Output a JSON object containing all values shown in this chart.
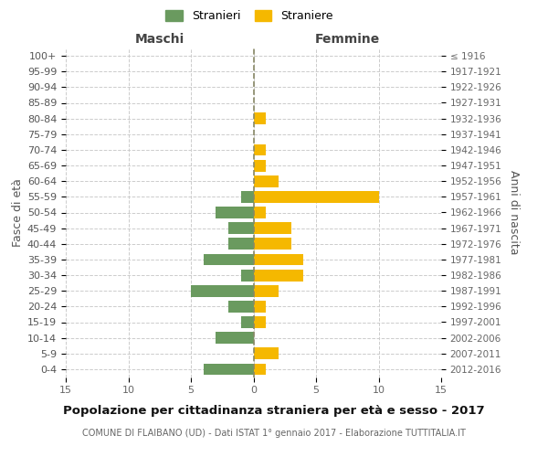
{
  "age_groups": [
    "0-4",
    "5-9",
    "10-14",
    "15-19",
    "20-24",
    "25-29",
    "30-34",
    "35-39",
    "40-44",
    "45-49",
    "50-54",
    "55-59",
    "60-64",
    "65-69",
    "70-74",
    "75-79",
    "80-84",
    "85-89",
    "90-94",
    "95-99",
    "100+"
  ],
  "birth_years": [
    "2012-2016",
    "2007-2011",
    "2002-2006",
    "1997-2001",
    "1992-1996",
    "1987-1991",
    "1982-1986",
    "1977-1981",
    "1972-1976",
    "1967-1971",
    "1962-1966",
    "1957-1961",
    "1952-1956",
    "1947-1951",
    "1942-1946",
    "1937-1941",
    "1932-1936",
    "1927-1931",
    "1922-1926",
    "1917-1921",
    "≤ 1916"
  ],
  "males": [
    4,
    0,
    3,
    1,
    2,
    5,
    1,
    4,
    2,
    2,
    3,
    1,
    0,
    0,
    0,
    0,
    0,
    0,
    0,
    0,
    0
  ],
  "females": [
    1,
    2,
    0,
    1,
    1,
    2,
    4,
    4,
    3,
    3,
    1,
    10,
    2,
    1,
    1,
    0,
    1,
    0,
    0,
    0,
    0
  ],
  "male_color": "#6a9a5f",
  "female_color": "#f5b800",
  "background_color": "#ffffff",
  "grid_color": "#cccccc",
  "title": "Popolazione per cittadinanza straniera per età e sesso - 2017",
  "subtitle": "COMUNE DI FLAIBANO (UD) - Dati ISTAT 1° gennaio 2017 - Elaborazione TUTTITALIA.IT",
  "xlabel_left": "Maschi",
  "xlabel_right": "Femmine",
  "ylabel_left": "Fasce di età",
  "ylabel_right": "Anni di nascita",
  "xlim": 15,
  "legend_stranieri": "Stranieri",
  "legend_straniere": "Straniere"
}
